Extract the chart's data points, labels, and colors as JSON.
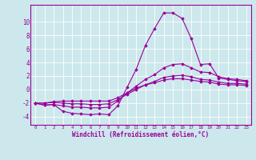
{
  "xlabel": "Windchill (Refroidissement éolien,°C)",
  "ylabel": "",
  "bg_color": "#cce8ec",
  "line_color": "#990099",
  "grid_color": "#ffffff",
  "xlim": [
    -0.5,
    23.5
  ],
  "ylim": [
    -5.2,
    12.5
  ],
  "yticks": [
    -4,
    -2,
    0,
    2,
    4,
    6,
    8,
    10
  ],
  "xticks": [
    0,
    1,
    2,
    3,
    4,
    5,
    6,
    7,
    8,
    9,
    10,
    11,
    12,
    13,
    14,
    15,
    16,
    17,
    18,
    19,
    20,
    21,
    22,
    23
  ],
  "series": [
    [
      -2.0,
      -2.3,
      -2.2,
      -3.2,
      -3.5,
      -3.6,
      -3.7,
      -3.6,
      -3.7,
      -2.4,
      0.3,
      3.0,
      6.5,
      9.0,
      11.3,
      11.3,
      10.5,
      7.5,
      3.7,
      3.8,
      1.7,
      1.5,
      1.3,
      1.2
    ],
    [
      -2.0,
      -2.3,
      -2.2,
      -2.4,
      -2.6,
      -2.6,
      -2.7,
      -2.7,
      -2.6,
      -1.7,
      -0.5,
      0.5,
      1.5,
      2.2,
      3.2,
      3.7,
      3.8,
      3.2,
      2.6,
      2.5,
      1.9,
      1.6,
      1.5,
      1.3
    ],
    [
      -2.0,
      -2.0,
      -1.9,
      -2.0,
      -2.1,
      -2.1,
      -2.2,
      -2.2,
      -2.1,
      -1.5,
      -0.7,
      0.0,
      0.7,
      1.2,
      1.8,
      2.0,
      2.1,
      1.9,
      1.5,
      1.4,
      1.1,
      0.9,
      0.9,
      0.8
    ],
    [
      -2.0,
      -2.0,
      -1.8,
      -1.7,
      -1.7,
      -1.7,
      -1.7,
      -1.7,
      -1.7,
      -1.2,
      -0.5,
      0.2,
      0.7,
      1.0,
      1.4,
      1.6,
      1.6,
      1.4,
      1.2,
      1.1,
      0.8,
      0.7,
      0.7,
      0.6
    ]
  ]
}
